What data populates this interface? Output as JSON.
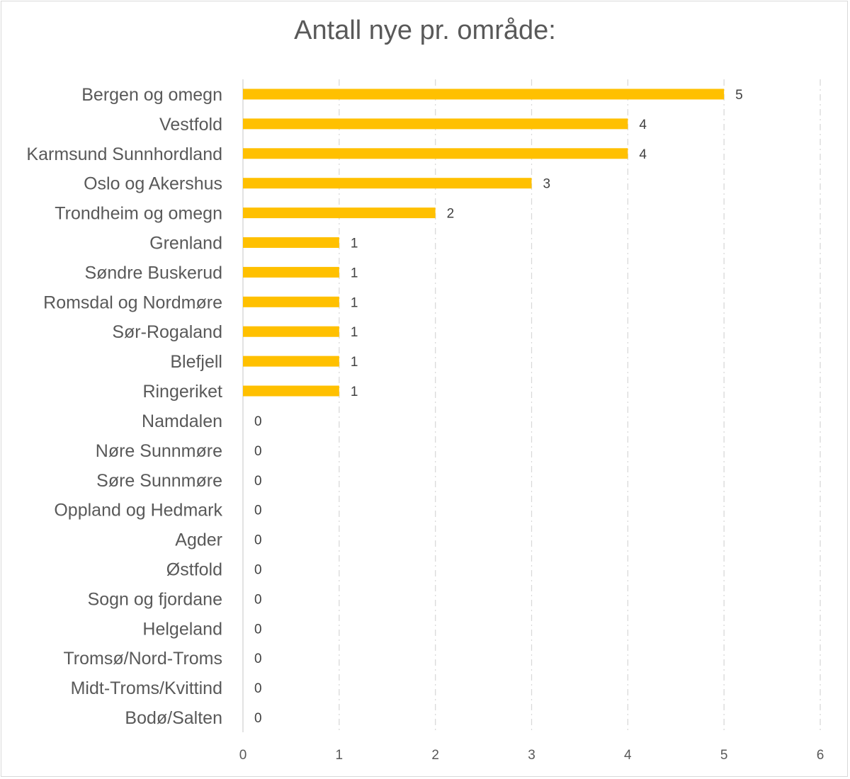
{
  "chart_data": {
    "type": "bar",
    "orientation": "horizontal",
    "title": "Antall nye pr. område:",
    "categories": [
      "Bergen og omegn",
      "Vestfold",
      "Karmsund Sunnhordland",
      "Oslo og Akershus",
      "Trondheim og omegn",
      "Grenland",
      "Søndre Buskerud",
      "Romsdal og Nordmøre",
      "Sør-Rogaland",
      "Blefjell",
      "Ringeriket",
      "Namdalen",
      "Nøre Sunnmøre",
      "Søre Sunnmøre",
      "Oppland og Hedmark",
      "Agder",
      "Østfold",
      "Sogn og fjordane",
      "Helgeland",
      "Tromsø/Nord-Troms",
      "Midt-Troms/Kvittind",
      "Bodø/Salten"
    ],
    "values": [
      5,
      4,
      4,
      3,
      2,
      1,
      1,
      1,
      1,
      1,
      1,
      0,
      0,
      0,
      0,
      0,
      0,
      0,
      0,
      0,
      0,
      0
    ],
    "xlim": [
      0,
      6
    ],
    "xticks": [
      "0",
      "1",
      "2",
      "3",
      "4",
      "5",
      "6"
    ],
    "grid": "vertical dashed",
    "data_labels": true,
    "legend": "none",
    "bar_color": "#FFC000",
    "grid_color": "#d9d9d9",
    "text_color": "#595959"
  }
}
